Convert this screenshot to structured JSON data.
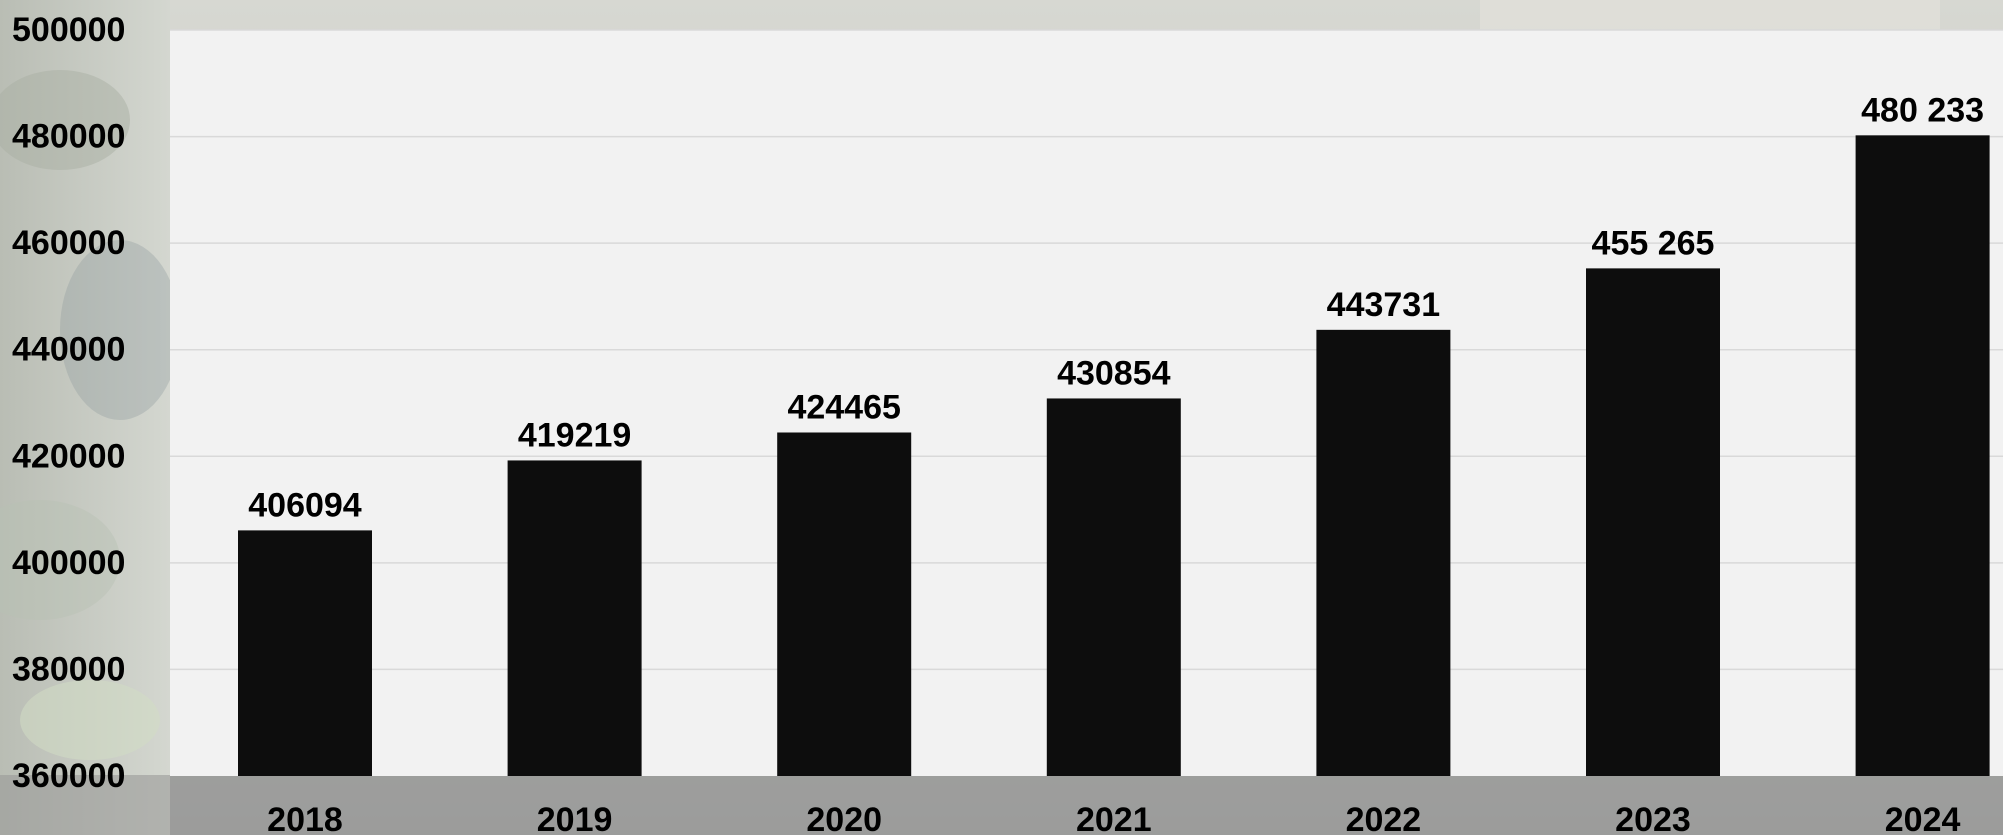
{
  "chart_data": {
    "type": "bar",
    "title": "",
    "xlabel": "",
    "ylabel": "",
    "categories": [
      "2018",
      "2019",
      "2020",
      "2021",
      "2022",
      "2023",
      "2024"
    ],
    "values": [
      406094,
      419219,
      424465,
      430854,
      443731,
      455265,
      480233
    ],
    "data_labels": [
      "406094",
      "419219",
      "424465",
      "430854",
      "443731",
      "455 265",
      "480 233"
    ],
    "ylim": [
      360000,
      500000
    ],
    "yticks": [
      360000,
      380000,
      400000,
      420000,
      440000,
      460000,
      480000,
      500000
    ],
    "ytick_labels": [
      "360000",
      "380000",
      "400000",
      "420000",
      "440000",
      "460000",
      "480000",
      "500000"
    ],
    "grid": true,
    "legend": "none",
    "colors": {
      "bar": "#0d0d0d",
      "plot_background": "#f2f2f2",
      "gridline": "#d9d9d9",
      "text": "#000000"
    }
  }
}
